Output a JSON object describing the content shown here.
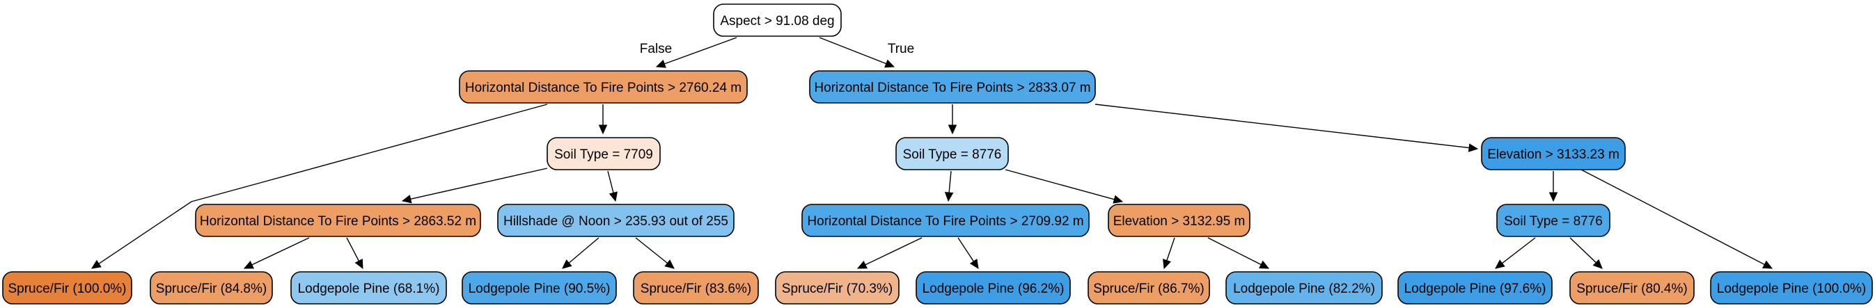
{
  "colors": {
    "white": "#ffffff",
    "orange_dark": "#e58139",
    "orange_mid": "#ec9e65",
    "orange_light": "#f0b48a",
    "orange_pale": "#fae5d6",
    "blue_dark": "#3d9de5",
    "blue_mid": "#4ea8e7",
    "blue_light": "#65b3eb",
    "blue_sky": "#83c1ef",
    "blue_pale": "#8ec7f0",
    "blue_faint": "#b6dbf5"
  },
  "nodes": [
    {
      "id": "n0",
      "label": "Aspect > 91.08 deg",
      "color": "white"
    },
    {
      "id": "n1",
      "label": "Horizontal Distance To Fire Points > 2760.24 m",
      "color": "orange_mid"
    },
    {
      "id": "n2",
      "label": "Horizontal Distance To Fire Points > 2833.07 m",
      "color": "blue_mid"
    },
    {
      "id": "n3",
      "label": "Soil Type = 7709",
      "color": "orange_pale"
    },
    {
      "id": "n4",
      "label": "Soil Type = 8776",
      "color": "blue_faint"
    },
    {
      "id": "n5",
      "label": "Elevation > 3133.23 m",
      "color": "blue_dark"
    },
    {
      "id": "n6",
      "label": "Horizontal Distance To Fire Points > 2863.52 m",
      "color": "orange_mid"
    },
    {
      "id": "n7",
      "label": "Hillshade @ Noon > 235.93 out of 255",
      "color": "blue_sky"
    },
    {
      "id": "n8",
      "label": "Horizontal Distance To Fire Points > 2709.92 m",
      "color": "blue_mid"
    },
    {
      "id": "n9",
      "label": "Elevation > 3132.95 m",
      "color": "orange_mid"
    },
    {
      "id": "n10",
      "label": "Soil Type = 8776",
      "color": "blue_mid"
    },
    {
      "id": "l1",
      "label": "Spruce/Fir (100.0%)",
      "color": "orange_dark"
    },
    {
      "id": "l2",
      "label": "Spruce/Fir (84.8%)",
      "color": "orange_mid"
    },
    {
      "id": "l3",
      "label": "Lodgepole Pine (68.1%)",
      "color": "blue_pale"
    },
    {
      "id": "l4",
      "label": "Lodgepole Pine (90.5%)",
      "color": "blue_mid"
    },
    {
      "id": "l5",
      "label": "Spruce/Fir (83.6%)",
      "color": "orange_mid"
    },
    {
      "id": "l6",
      "label": "Spruce/Fir (70.3%)",
      "color": "orange_light"
    },
    {
      "id": "l7",
      "label": "Lodgepole Pine (96.2%)",
      "color": "blue_dark"
    },
    {
      "id": "l8",
      "label": "Spruce/Fir (86.7%)",
      "color": "orange_mid"
    },
    {
      "id": "l9",
      "label": "Lodgepole Pine (82.2%)",
      "color": "blue_light"
    },
    {
      "id": "l10",
      "label": "Lodgepole Pine (97.6%)",
      "color": "blue_dark"
    },
    {
      "id": "l11",
      "label": "Spruce/Fir (80.4%)",
      "color": "orange_mid"
    },
    {
      "id": "l12",
      "label": "Lodgepole Pine (100.0%)",
      "color": "blue_dark"
    }
  ],
  "edges": [
    {
      "from": "n0",
      "to": "n1",
      "label": "False"
    },
    {
      "from": "n0",
      "to": "n2",
      "label": "True"
    },
    {
      "from": "n1",
      "to": "l1",
      "label": ""
    },
    {
      "from": "n1",
      "to": "n3",
      "label": ""
    },
    {
      "from": "n3",
      "to": "n6",
      "label": ""
    },
    {
      "from": "n3",
      "to": "n7",
      "label": ""
    },
    {
      "from": "n6",
      "to": "l2",
      "label": ""
    },
    {
      "from": "n6",
      "to": "l3",
      "label": ""
    },
    {
      "from": "n7",
      "to": "l4",
      "label": ""
    },
    {
      "from": "n7",
      "to": "l5",
      "label": ""
    },
    {
      "from": "n2",
      "to": "n4",
      "label": ""
    },
    {
      "from": "n2",
      "to": "n5",
      "label": ""
    },
    {
      "from": "n4",
      "to": "n8",
      "label": ""
    },
    {
      "from": "n4",
      "to": "n9",
      "label": ""
    },
    {
      "from": "n8",
      "to": "l6",
      "label": ""
    },
    {
      "from": "n8",
      "to": "l7",
      "label": ""
    },
    {
      "from": "n9",
      "to": "l8",
      "label": ""
    },
    {
      "from": "n9",
      "to": "l9",
      "label": ""
    },
    {
      "from": "n5",
      "to": "n10",
      "label": ""
    },
    {
      "from": "n5",
      "to": "l12",
      "label": ""
    },
    {
      "from": "n10",
      "to": "l10",
      "label": ""
    },
    {
      "from": "n10",
      "to": "l11",
      "label": ""
    }
  ]
}
